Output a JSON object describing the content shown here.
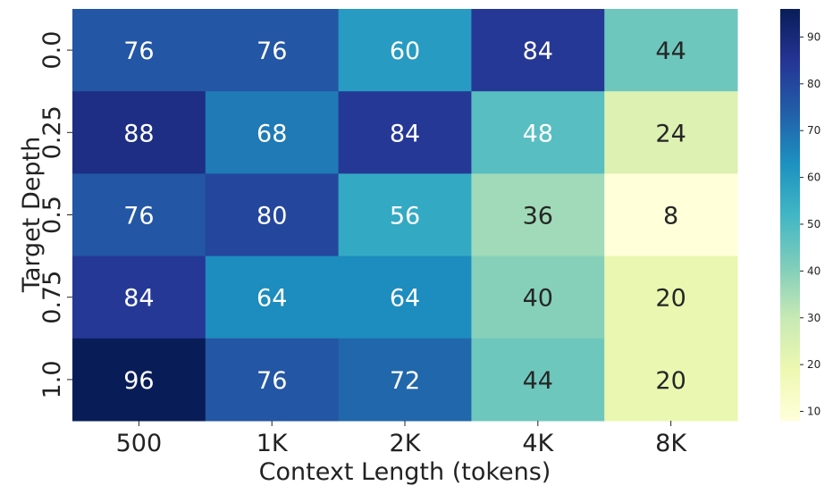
{
  "chart_data": {
    "type": "heatmap",
    "xlabel": "Context Length (tokens)",
    "ylabel": "Target Depth",
    "x_categories": [
      "500",
      "1K",
      "2K",
      "4K",
      "8K"
    ],
    "y_categories": [
      "0.0",
      "0.25",
      "0.5",
      "0.75",
      "1.0"
    ],
    "values": [
      [
        76,
        76,
        60,
        84,
        44
      ],
      [
        88,
        68,
        84,
        48,
        24
      ],
      [
        76,
        80,
        56,
        36,
        8
      ],
      [
        84,
        64,
        64,
        40,
        20
      ],
      [
        96,
        76,
        72,
        44,
        20
      ]
    ],
    "colorbar": {
      "colormap": "YlGnBu",
      "range": [
        8,
        96
      ],
      "ticks": [
        10,
        20,
        30,
        40,
        50,
        60,
        70,
        80,
        90
      ]
    }
  }
}
